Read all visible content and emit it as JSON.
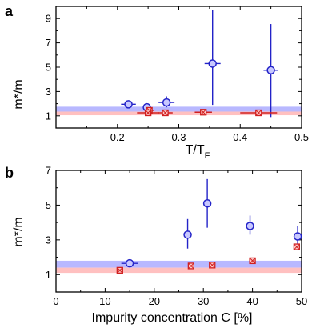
{
  "chart_data": [
    {
      "type": "scatter",
      "panel_label": "a",
      "xlabel": "T/T",
      "xlabel_sub": "F",
      "ylabel": "m*/m",
      "xlim": [
        0.1,
        0.5
      ],
      "ylim": [
        0,
        10
      ],
      "xticks": [
        0.2,
        0.3,
        0.4,
        0.5
      ],
      "xtick_labels": [
        "0.2",
        "0.3",
        "0.4",
        "0.5"
      ],
      "yticks": [
        1,
        3,
        5,
        7,
        9
      ],
      "ytick_labels": [
        "1",
        "3",
        "5",
        "7",
        "9"
      ],
      "bands": [
        {
          "y0": 1.35,
          "y1": 1.75,
          "color": "#b8b8ff"
        },
        {
          "y0": 1.05,
          "y1": 1.35,
          "color": "#ffc0c0"
        }
      ],
      "series": [
        {
          "marker": "circle",
          "color": "#2323c8",
          "points": [
            {
              "x": 0.218,
              "y": 1.95,
              "xerr": 0.012,
              "yerr_lo": 0.2,
              "yerr_hi": 0.2
            },
            {
              "x": 0.248,
              "y": 1.7,
              "xerr": 0.004,
              "yerr_lo": 0.15,
              "yerr_hi": 0.15
            },
            {
              "x": 0.28,
              "y": 2.1,
              "xerr": 0.013,
              "yerr_lo": 0.4,
              "yerr_hi": 0.5
            },
            {
              "x": 0.355,
              "y": 5.3,
              "xerr": 0.013,
              "yerr_lo": 3.4,
              "yerr_hi": 4.4
            },
            {
              "x": 0.45,
              "y": 4.75,
              "xerr": 0.012,
              "yerr_lo": 3.85,
              "yerr_hi": 3.8
            }
          ]
        },
        {
          "marker": "square-cross",
          "color": "#d02020",
          "points": [
            {
              "x": 0.252,
              "y": 1.45,
              "xerr": 0.008,
              "yerr_lo": 0.05,
              "yerr_hi": 0.05
            },
            {
              "x": 0.25,
              "y": 1.25,
              "xerr": 0.018,
              "yerr_lo": 0.05,
              "yerr_hi": 0.05
            },
            {
              "x": 0.278,
              "y": 1.25,
              "xerr": 0.012,
              "yerr_lo": 0.05,
              "yerr_hi": 0.05
            },
            {
              "x": 0.34,
              "y": 1.3,
              "xerr": 0.014,
              "yerr_lo": 0.05,
              "yerr_hi": 0.05
            },
            {
              "x": 0.43,
              "y": 1.25,
              "xerr": 0.03,
              "yerr_lo": 0.05,
              "yerr_hi": 0.05
            }
          ]
        }
      ]
    },
    {
      "type": "scatter",
      "panel_label": "b",
      "xlabel": "Impurity concentration C [%]",
      "ylabel": "m*/m",
      "xlim": [
        0,
        50
      ],
      "ylim": [
        0,
        7
      ],
      "xticks": [
        0,
        10,
        20,
        30,
        40,
        50
      ],
      "xtick_labels": [
        "0",
        "10",
        "20",
        "30",
        "40",
        "50"
      ],
      "yticks": [
        1,
        3,
        5,
        7
      ],
      "ytick_labels": [
        "1",
        "3",
        "5",
        "7"
      ],
      "bands": [
        {
          "y0": 1.4,
          "y1": 1.8,
          "color": "#b8b8ff"
        },
        {
          "y0": 1.1,
          "y1": 1.4,
          "color": "#ffc0c0"
        }
      ],
      "series": [
        {
          "marker": "circle",
          "color": "#2323c8",
          "points": [
            {
              "x": 15,
              "y": 1.65,
              "xerr": 1.7,
              "yerr_lo": 0.15,
              "yerr_hi": 0.2
            },
            {
              "x": 26.8,
              "y": 3.3,
              "xerr": 0.4,
              "yerr_lo": 0.8,
              "yerr_hi": 0.9
            },
            {
              "x": 30.8,
              "y": 5.1,
              "xerr": 0.4,
              "yerr_lo": 1.4,
              "yerr_hi": 1.4
            },
            {
              "x": 39.5,
              "y": 3.8,
              "xerr": 0.3,
              "yerr_lo": 0.5,
              "yerr_hi": 0.6
            },
            {
              "x": 49.2,
              "y": 3.2,
              "xerr": 0.3,
              "yerr_lo": 0.6,
              "yerr_hi": 0.6
            }
          ]
        },
        {
          "marker": "square-cross",
          "color": "#d02020",
          "points": [
            {
              "x": 13.0,
              "y": 1.25,
              "xerr": 0.3,
              "yerr_lo": 0.05,
              "yerr_hi": 0.05
            },
            {
              "x": 27.5,
              "y": 1.5,
              "xerr": 0.6,
              "yerr_lo": 0.05,
              "yerr_hi": 0.05
            },
            {
              "x": 31.8,
              "y": 1.55,
              "xerr": 0.5,
              "yerr_lo": 0.05,
              "yerr_hi": 0.05
            },
            {
              "x": 40.0,
              "y": 1.8,
              "xerr": 0.3,
              "yerr_lo": 0.05,
              "yerr_hi": 0.05
            },
            {
              "x": 49.0,
              "y": 2.6,
              "xerr": 0.3,
              "yerr_lo": 0.05,
              "yerr_hi": 0.05
            }
          ]
        }
      ]
    }
  ]
}
